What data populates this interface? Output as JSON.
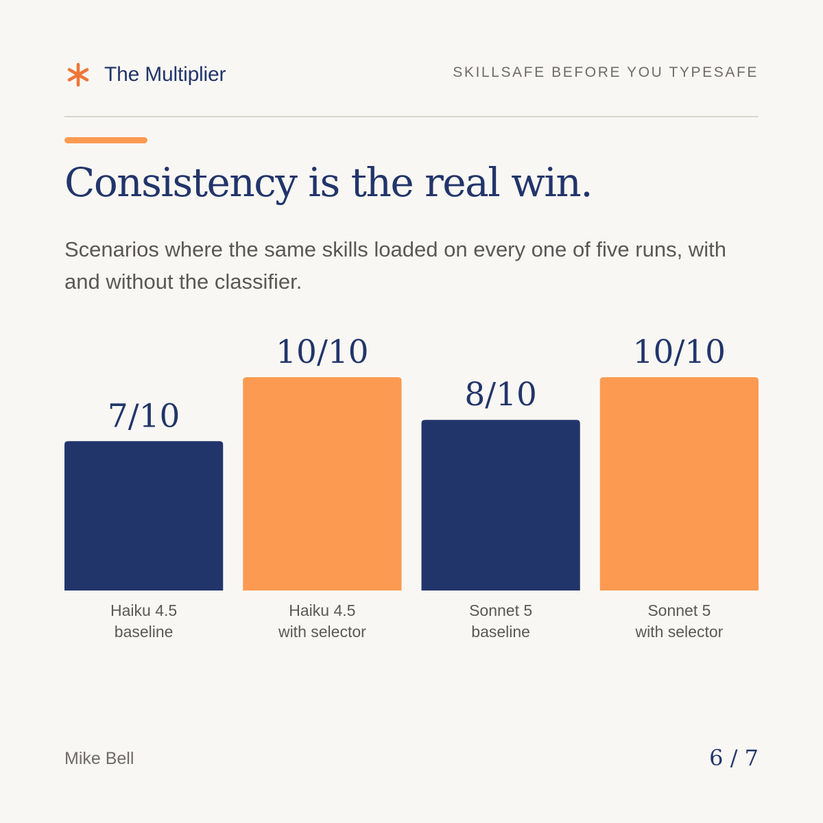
{
  "header": {
    "brand_name": "The Multiplier",
    "tagline": "SKILLSAFE BEFORE YOU TYPESAFE",
    "brand_icon": "asterisk-icon"
  },
  "title": "Consistency is the real win.",
  "subtitle": "Scenarios where the same skills loaded on every one of five runs, with and without the classifier.",
  "colors": {
    "baseline": "#22356b",
    "selector": "#fc9a52",
    "accent": "#ee7638",
    "text_dark": "#22356b",
    "text_muted": "#5a5854",
    "background": "#f9f7f3"
  },
  "chart_data": {
    "type": "bar",
    "categories": [
      [
        "Haiku 4.5",
        "baseline"
      ],
      [
        "Haiku 4.5",
        "with selector"
      ],
      [
        "Sonnet 5",
        "baseline"
      ],
      [
        "Sonnet 5",
        "with selector"
      ]
    ],
    "values": [
      7,
      10,
      8,
      10
    ],
    "value_labels": [
      "7/10",
      "10/10",
      "8/10",
      "10/10"
    ],
    "groups": [
      "baseline",
      "selector",
      "baseline",
      "selector"
    ],
    "ylim": [
      0,
      10
    ],
    "grid": false,
    "legend": "none"
  },
  "footer": {
    "author": "Mike Bell",
    "page": "6 / 7"
  }
}
